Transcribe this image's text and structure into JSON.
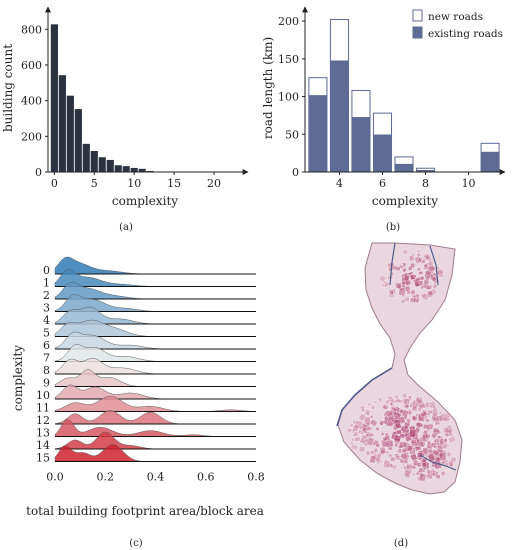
{
  "colors": {
    "dark_bar": "#2b3340",
    "existing": "#5d6b95",
    "new_fill": "#ffffff",
    "ridge_low": "#2f7ab6",
    "ridge_mid": "#eeeeee",
    "ridge_high": "#cf2230",
    "map_fill": "#e8d2dc",
    "map_block": "#b7587f",
    "map_road": "#4e5c8c"
  },
  "captions": {
    "a": "(a)",
    "b": "(b)",
    "c": "(c)",
    "d": "(d)"
  },
  "chart_data": [
    {
      "id": "a",
      "type": "bar",
      "xlabel": "complexity",
      "ylabel": "building count",
      "x": [
        0,
        1,
        2,
        3,
        4,
        5,
        6,
        7,
        8,
        9,
        10,
        11,
        12,
        13,
        14
      ],
      "values": [
        830,
        545,
        430,
        355,
        160,
        120,
        85,
        70,
        40,
        35,
        25,
        20,
        8,
        4,
        2
      ],
      "xlim": [
        -0.8,
        23
      ],
      "ylim": [
        0,
        880
      ],
      "xticks": [
        "0",
        "5",
        "10",
        "15",
        "20"
      ],
      "yticks": [
        "0",
        "200",
        "400",
        "600",
        "800"
      ]
    },
    {
      "id": "b",
      "type": "bar",
      "stacked": true,
      "xlabel": "complexity",
      "ylabel": "road length (km)",
      "categories": [
        3,
        4,
        5,
        6,
        7,
        8,
        11
      ],
      "series": [
        {
          "name": "existing roads",
          "values": [
            101,
            147,
            72,
            49,
            10,
            2,
            26
          ]
        },
        {
          "name": "new roads",
          "values": [
            24,
            55,
            36,
            29,
            10,
            3,
            12
          ]
        }
      ],
      "xlim": [
        2.4,
        11.6
      ],
      "ylim": [
        0,
        212
      ],
      "xticks": [
        "4",
        "6",
        "8",
        "10"
      ],
      "yticks": [
        "0",
        "50",
        "100",
        "150",
        "200"
      ],
      "legend": "top-right"
    },
    {
      "id": "c",
      "type": "area",
      "subtype": "ridgeline",
      "xlabel": "total building footprint area/block area",
      "ylabel": "complexity",
      "xlim": [
        0,
        0.8
      ],
      "xticks": [
        "0.0",
        "0.2",
        "0.4",
        "0.6",
        "0.8"
      ],
      "rows": [
        {
          "label": "0",
          "peaks": [
            [
              0.04,
              0.03,
              1.0
            ],
            [
              0.1,
              0.04,
              0.65
            ],
            [
              0.2,
              0.06,
              0.25
            ]
          ]
        },
        {
          "label": "1",
          "peaks": [
            [
              0.05,
              0.03,
              1.0
            ],
            [
              0.13,
              0.05,
              0.6
            ],
            [
              0.25,
              0.06,
              0.15
            ]
          ]
        },
        {
          "label": "2",
          "peaks": [
            [
              0.06,
              0.03,
              0.95
            ],
            [
              0.13,
              0.05,
              0.75
            ],
            [
              0.24,
              0.05,
              0.2
            ]
          ]
        },
        {
          "label": "3",
          "peaks": [
            [
              0.07,
              0.03,
              0.9
            ],
            [
              0.15,
              0.05,
              0.8
            ],
            [
              0.28,
              0.05,
              0.2
            ]
          ]
        },
        {
          "label": "4",
          "peaks": [
            [
              0.06,
              0.03,
              0.7
            ],
            [
              0.14,
              0.04,
              1.0
            ],
            [
              0.26,
              0.05,
              0.3
            ]
          ]
        },
        {
          "label": "5",
          "peaks": [
            [
              0.05,
              0.03,
              0.6
            ],
            [
              0.14,
              0.05,
              0.9
            ],
            [
              0.24,
              0.05,
              0.4
            ]
          ]
        },
        {
          "label": "6",
          "peaks": [
            [
              0.07,
              0.03,
              0.85
            ],
            [
              0.15,
              0.05,
              0.9
            ],
            [
              0.3,
              0.05,
              0.25
            ]
          ]
        },
        {
          "label": "7",
          "peaks": [
            [
              0.08,
              0.03,
              0.9
            ],
            [
              0.16,
              0.04,
              0.8
            ],
            [
              0.28,
              0.05,
              0.3
            ]
          ]
        },
        {
          "label": "8",
          "peaks": [
            [
              0.06,
              0.03,
              0.8
            ],
            [
              0.15,
              0.04,
              0.9
            ],
            [
              0.27,
              0.05,
              0.35
            ]
          ]
        },
        {
          "label": "9",
          "peaks": [
            [
              0.05,
              0.03,
              0.5
            ],
            [
              0.13,
              0.03,
              1.0
            ],
            [
              0.22,
              0.04,
              0.55
            ]
          ]
        },
        {
          "label": "10",
          "peaks": [
            [
              0.06,
              0.03,
              0.8
            ],
            [
              0.16,
              0.04,
              0.7
            ],
            [
              0.3,
              0.05,
              0.35
            ]
          ]
        },
        {
          "label": "11",
          "peaks": [
            [
              0.08,
              0.04,
              0.5
            ],
            [
              0.22,
              0.05,
              0.9
            ],
            [
              0.38,
              0.05,
              0.3
            ],
            [
              0.7,
              0.04,
              0.1
            ]
          ]
        },
        {
          "label": "12",
          "peaks": [
            [
              0.08,
              0.03,
              0.6
            ],
            [
              0.22,
              0.04,
              0.8
            ],
            [
              0.38,
              0.04,
              0.7
            ]
          ]
        },
        {
          "label": "13",
          "peaks": [
            [
              0.05,
              0.025,
              1.0
            ],
            [
              0.18,
              0.05,
              0.55
            ],
            [
              0.38,
              0.05,
              0.35
            ],
            [
              0.55,
              0.04,
              0.1
            ]
          ]
        },
        {
          "label": "14",
          "peaks": [
            [
              0.08,
              0.03,
              0.8
            ],
            [
              0.2,
              0.035,
              1.5
            ],
            [
              0.3,
              0.04,
              0.3
            ]
          ]
        },
        {
          "label": "15",
          "peaks": [
            [
              0.04,
              0.025,
              0.9
            ],
            [
              0.11,
              0.03,
              0.5
            ],
            [
              0.23,
              0.04,
              1.0
            ]
          ]
        }
      ]
    }
  ]
}
